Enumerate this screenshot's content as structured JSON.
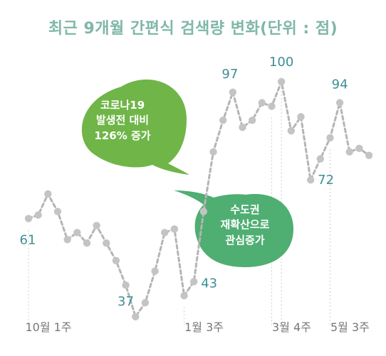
{
  "chart_data": {
    "type": "line",
    "title": "최근 9개월 간편식 검색량 변화(단위 : 점)",
    "x_tick_labels": [
      {
        "index": 0,
        "label": "10월 1주"
      },
      {
        "index": 16,
        "label": "1월 3주"
      },
      {
        "index": 25,
        "label": "3월 4주"
      },
      {
        "index": 31,
        "label": "5월 3주"
      }
    ],
    "values": [
      61,
      62,
      68,
      63,
      55,
      57,
      54,
      59,
      54,
      49,
      42,
      33,
      37,
      46,
      57,
      58,
      39,
      43,
      63,
      80,
      89,
      97,
      87,
      89,
      94,
      93,
      100,
      86,
      90,
      72,
      78,
      84,
      94,
      80,
      81,
      79
    ],
    "labeled_points": [
      {
        "index": 0,
        "label": "61"
      },
      {
        "index": 12,
        "label": "37"
      },
      {
        "index": 17,
        "label": "43"
      },
      {
        "index": 21,
        "label": "97"
      },
      {
        "index": 26,
        "label": "100"
      },
      {
        "index": 29,
        "label": "72"
      },
      {
        "index": 32,
        "label": "94"
      }
    ],
    "colors": {
      "line": "#b5b5b5",
      "marker": "#c4c4c4",
      "value_label": "#3e8f96",
      "title": "#7fb7a8",
      "axis_label": "#777777"
    }
  },
  "callouts": {
    "covid": {
      "lines": [
        "코로나19",
        "발생전 대비",
        "126% 증가"
      ],
      "color": "#6fb548"
    },
    "capital": {
      "lines": [
        "수도권",
        "재확산으로",
        "관심증가"
      ],
      "color": "#4fae72"
    }
  }
}
